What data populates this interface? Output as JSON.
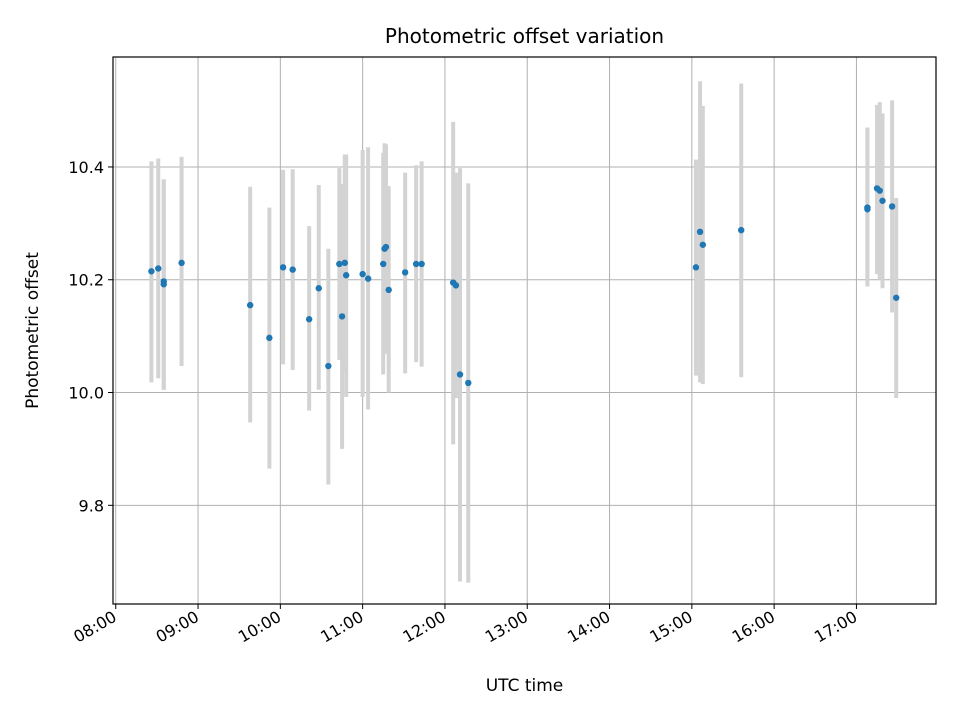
{
  "chart_data": {
    "type": "scatter",
    "title": "Photometric offset variation",
    "xlabel": "UTC time",
    "ylabel": "Photometric offset",
    "grid": true,
    "x_ticks": [
      "08:00",
      "09:00",
      "10:00",
      "11:00",
      "12:00",
      "13:00",
      "14:00",
      "15:00",
      "16:00",
      "17:00"
    ],
    "y_ticks": [
      9.8,
      10.0,
      10.2,
      10.4
    ],
    "y_tick_labels": [
      "9.8",
      "10.0",
      "10.2",
      "10.4"
    ],
    "xlim": [
      "07:58",
      "17:58"
    ],
    "ylim": [
      9.625,
      10.595
    ],
    "colors": {
      "point": "#1f77b4",
      "errorbar": "#d3d3d3",
      "grid": "#b0b0b0"
    },
    "points": [
      {
        "t": "08:26",
        "y": 10.215,
        "lo": 10.018,
        "hi": 10.41
      },
      {
        "t": "08:31",
        "y": 10.22,
        "lo": 10.025,
        "hi": 10.415
      },
      {
        "t": "08:35",
        "y": 10.197,
        "lo": 10.005,
        "hi": 10.378
      },
      {
        "t": "08:35",
        "y": 10.192,
        "lo": 10.005,
        "hi": 10.378
      },
      {
        "t": "08:48",
        "y": 10.23,
        "lo": 10.047,
        "hi": 10.418
      },
      {
        "t": "09:38",
        "y": 10.155,
        "lo": 9.947,
        "hi": 10.365
      },
      {
        "t": "09:52",
        "y": 10.097,
        "lo": 9.865,
        "hi": 10.328
      },
      {
        "t": "10:02",
        "y": 10.222,
        "lo": 10.05,
        "hi": 10.395
      },
      {
        "t": "10:09",
        "y": 10.218,
        "lo": 10.04,
        "hi": 10.396
      },
      {
        "t": "10:21",
        "y": 10.13,
        "lo": 9.968,
        "hi": 10.295
      },
      {
        "t": "10:28",
        "y": 10.185,
        "lo": 10.005,
        "hi": 10.368
      },
      {
        "t": "10:35",
        "y": 10.047,
        "lo": 9.837,
        "hi": 10.255
      },
      {
        "t": "10:43",
        "y": 10.228,
        "lo": 10.058,
        "hi": 10.398
      },
      {
        "t": "10:45",
        "y": 10.135,
        "lo": 9.9,
        "hi": 10.37
      },
      {
        "t": "10:47",
        "y": 10.23,
        "lo": 10.036,
        "hi": 10.422
      },
      {
        "t": "10:48",
        "y": 10.208,
        "lo": 9.992,
        "hi": 10.422
      },
      {
        "t": "11:00",
        "y": 10.21,
        "lo": 9.992,
        "hi": 10.43
      },
      {
        "t": "11:04",
        "y": 10.202,
        "lo": 9.97,
        "hi": 10.435
      },
      {
        "t": "11:15",
        "y": 10.228,
        "lo": 10.032,
        "hi": 10.425
      },
      {
        "t": "11:16",
        "y": 10.255,
        "lo": 10.068,
        "hi": 10.442
      },
      {
        "t": "11:17",
        "y": 10.258,
        "lo": 10.075,
        "hi": 10.44
      },
      {
        "t": "11:19",
        "y": 10.182,
        "lo": 10.0,
        "hi": 10.366
      },
      {
        "t": "11:31",
        "y": 10.213,
        "lo": 10.034,
        "hi": 10.39
      },
      {
        "t": "11:39",
        "y": 10.228,
        "lo": 10.054,
        "hi": 10.403
      },
      {
        "t": "11:43",
        "y": 10.228,
        "lo": 10.046,
        "hi": 10.41
      },
      {
        "t": "12:06",
        "y": 10.195,
        "lo": 9.908,
        "hi": 10.48
      },
      {
        "t": "12:08",
        "y": 10.19,
        "lo": 9.99,
        "hi": 10.39
      },
      {
        "t": "12:11",
        "y": 10.032,
        "lo": 9.665,
        "hi": 10.398
      },
      {
        "t": "12:17",
        "y": 10.017,
        "lo": 9.663,
        "hi": 10.371
      },
      {
        "t": "15:03",
        "y": 10.222,
        "lo": 10.03,
        "hi": 10.413
      },
      {
        "t": "15:06",
        "y": 10.285,
        "lo": 10.018,
        "hi": 10.552
      },
      {
        "t": "15:08",
        "y": 10.262,
        "lo": 10.015,
        "hi": 10.508
      },
      {
        "t": "15:36",
        "y": 10.288,
        "lo": 10.027,
        "hi": 10.548
      },
      {
        "t": "17:08",
        "y": 10.328,
        "lo": 10.188,
        "hi": 10.47
      },
      {
        "t": "17:08",
        "y": 10.325,
        "lo": 10.188,
        "hi": 10.47
      },
      {
        "t": "17:15",
        "y": 10.362,
        "lo": 10.21,
        "hi": 10.51
      },
      {
        "t": "17:17",
        "y": 10.358,
        "lo": 10.2,
        "hi": 10.515
      },
      {
        "t": "17:19",
        "y": 10.34,
        "lo": 10.185,
        "hi": 10.495
      },
      {
        "t": "17:26",
        "y": 10.33,
        "lo": 10.142,
        "hi": 10.518
      },
      {
        "t": "17:29",
        "y": 10.168,
        "lo": 9.99,
        "hi": 10.345
      }
    ]
  }
}
